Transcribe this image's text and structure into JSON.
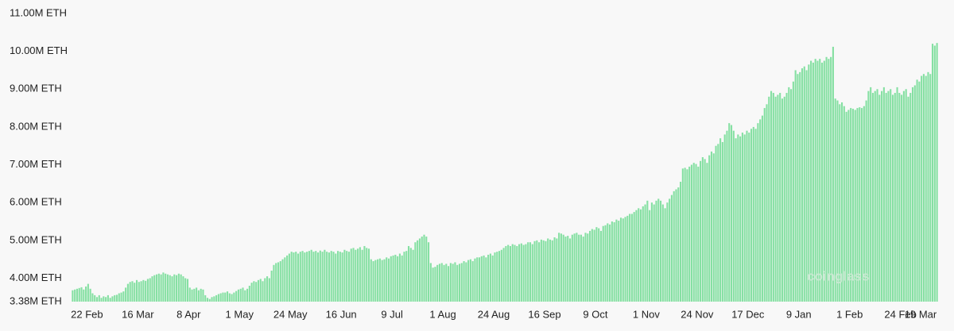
{
  "chart_data": {
    "type": "bar",
    "color": "#86e0a3",
    "watermark": "coinglass",
    "ylim": [
      3.38,
      11.0
    ],
    "yticks": [
      {
        "value": 3.38,
        "label": "3.38M ETH"
      },
      {
        "value": 4,
        "label": "4.00M ETH"
      },
      {
        "value": 5,
        "label": "5.00M ETH"
      },
      {
        "value": 6,
        "label": "6.00M ETH"
      },
      {
        "value": 7,
        "label": "7.00M ETH"
      },
      {
        "value": 8,
        "label": "8.00M ETH"
      },
      {
        "value": 9,
        "label": "9.00M ETH"
      },
      {
        "value": 10,
        "label": "10.00M ETH"
      },
      {
        "value": 11,
        "label": "11.00M ETH"
      }
    ],
    "categories": [
      "22 Feb",
      null,
      null,
      null,
      null,
      null,
      null,
      null,
      null,
      null,
      null,
      null,
      null,
      null,
      null,
      null,
      null,
      null,
      null,
      null,
      null,
      null,
      null,
      "16 Mar",
      null,
      null,
      null,
      null,
      null,
      null,
      null,
      null,
      null,
      null,
      null,
      null,
      null,
      null,
      null,
      null,
      null,
      null,
      null,
      null,
      null,
      null,
      "8 Apr",
      null,
      null,
      null,
      null,
      null,
      null,
      null,
      null,
      null,
      null,
      null,
      null,
      null,
      null,
      null,
      null,
      null,
      null,
      null,
      null,
      null,
      null,
      "1 May",
      null,
      null,
      null,
      null,
      null,
      null,
      null,
      null,
      null,
      null,
      null,
      null,
      null,
      null,
      null,
      null,
      null,
      null,
      null,
      null,
      null,
      null,
      "24 May",
      null,
      null,
      null,
      null,
      null,
      null,
      null,
      null,
      null,
      null,
      null,
      null,
      null,
      null,
      null,
      null,
      null,
      null,
      null,
      null,
      null,
      null,
      "16 Jun",
      null,
      null,
      null,
      null,
      null,
      null,
      null,
      null,
      null,
      null,
      null,
      null,
      null,
      null,
      null,
      null,
      null,
      null,
      null,
      null,
      null,
      null,
      "9 Jul",
      null,
      null,
      null,
      null,
      null,
      null,
      null,
      null,
      null,
      null,
      null,
      null,
      null,
      null,
      null,
      null,
      null,
      null,
      null,
      null,
      null,
      null,
      "1 Aug",
      null,
      null,
      null,
      null,
      null,
      null,
      null,
      null,
      null,
      null,
      null,
      null,
      null,
      null,
      null,
      null,
      null,
      null,
      null,
      null,
      null,
      null,
      "24 Aug",
      null,
      null,
      null,
      null,
      null,
      null,
      null,
      null,
      null,
      null,
      null,
      null,
      null,
      null,
      null,
      null,
      null,
      null,
      null,
      null,
      null,
      null,
      "16 Sep",
      null,
      null,
      null,
      null,
      null,
      null,
      null,
      null,
      null,
      null,
      null,
      null,
      null,
      null,
      null,
      null,
      null,
      null,
      null,
      null,
      null,
      null,
      "9 Oct",
      null,
      null,
      null,
      null,
      null,
      null,
      null,
      null,
      null,
      null,
      null,
      null,
      null,
      null,
      null,
      null,
      null,
      null,
      null,
      null,
      null,
      null,
      "1 Nov",
      null,
      null,
      null,
      null,
      null,
      null,
      null,
      null,
      null,
      null,
      null,
      null,
      null,
      null,
      null,
      null,
      null,
      null,
      null,
      null,
      null,
      null,
      "24 Nov",
      null,
      null,
      null,
      null,
      null,
      null,
      null,
      null,
      null,
      null,
      null,
      null,
      null,
      null,
      null,
      null,
      null,
      null,
      null,
      null,
      null,
      null,
      "17 Dec",
      null,
      null,
      null,
      null,
      null,
      null,
      null,
      null,
      null,
      null,
      null,
      null,
      null,
      null,
      null,
      null,
      null,
      null,
      null,
      null,
      null,
      null,
      "9 Jan",
      null,
      null,
      null,
      null,
      null,
      null,
      null,
      null,
      null,
      null,
      null,
      null,
      null,
      null,
      null,
      null,
      null,
      null,
      null,
      null,
      null,
      null,
      "1 Feb",
      null,
      null,
      null,
      null,
      null,
      null,
      null,
      null,
      null,
      null,
      null,
      null,
      null,
      null,
      null,
      null,
      null,
      null,
      null,
      null,
      null,
      null,
      "24 Feb",
      null,
      null,
      null,
      null,
      null,
      null,
      null,
      null,
      null,
      null,
      null,
      null,
      null,
      null,
      null,
      null,
      null,
      null,
      null,
      null,
      null,
      null,
      "19 Mar"
    ],
    "values": [
      3.68,
      3.7,
      3.72,
      3.74,
      3.76,
      3.7,
      3.78,
      3.85,
      3.72,
      3.6,
      3.55,
      3.5,
      3.55,
      3.48,
      3.52,
      3.5,
      3.55,
      3.48,
      3.52,
      3.55,
      3.56,
      3.6,
      3.62,
      3.65,
      3.75,
      3.85,
      3.9,
      3.92,
      3.88,
      3.95,
      3.9,
      3.92,
      3.95,
      3.93,
      3.98,
      4.0,
      4.05,
      4.08,
      4.1,
      4.12,
      4.1,
      4.15,
      4.12,
      4.1,
      4.08,
      4.05,
      4.1,
      4.08,
      4.12,
      4.1,
      4.05,
      4.0,
      3.98,
      3.75,
      3.7,
      3.72,
      3.75,
      3.68,
      3.72,
      3.7,
      3.55,
      3.48,
      3.45,
      3.5,
      3.52,
      3.55,
      3.58,
      3.6,
      3.62,
      3.62,
      3.65,
      3.6,
      3.58,
      3.62,
      3.66,
      3.7,
      3.72,
      3.75,
      3.68,
      3.72,
      3.8,
      3.88,
      3.92,
      3.9,
      3.95,
      3.98,
      3.92,
      4.0,
      4.05,
      4.0,
      4.2,
      4.35,
      4.4,
      4.42,
      4.45,
      4.5,
      4.55,
      4.6,
      4.65,
      4.7,
      4.68,
      4.7,
      4.65,
      4.7,
      4.72,
      4.68,
      4.7,
      4.72,
      4.75,
      4.7,
      4.72,
      4.68,
      4.73,
      4.7,
      4.75,
      4.7,
      4.68,
      4.72,
      4.7,
      4.65,
      4.72,
      4.7,
      4.68,
      4.75,
      4.72,
      4.7,
      4.78,
      4.8,
      4.75,
      4.78,
      4.82,
      4.75,
      4.85,
      4.8,
      4.78,
      4.5,
      4.45,
      4.48,
      4.5,
      4.52,
      4.48,
      4.5,
      4.55,
      4.52,
      4.58,
      4.6,
      4.62,
      4.58,
      4.65,
      4.6,
      4.7,
      4.72,
      4.85,
      4.8,
      4.75,
      4.95,
      5.0,
      5.05,
      5.1,
      5.15,
      5.1,
      4.95,
      4.4,
      4.28,
      4.3,
      4.35,
      4.38,
      4.4,
      4.35,
      4.38,
      4.32,
      4.4,
      4.38,
      4.42,
      4.35,
      4.38,
      4.4,
      4.45,
      4.42,
      4.48,
      4.5,
      4.45,
      4.52,
      4.55,
      4.55,
      4.58,
      4.6,
      4.55,
      4.62,
      4.65,
      4.6,
      4.68,
      4.7,
      4.72,
      4.75,
      4.8,
      4.85,
      4.88,
      4.85,
      4.9,
      4.88,
      4.85,
      4.9,
      4.92,
      4.88,
      4.9,
      4.95,
      4.95,
      4.9,
      4.98,
      5.0,
      4.95,
      5.02,
      5.0,
      4.98,
      5.05,
      5.02,
      5.0,
      5.08,
      5.05,
      5.2,
      5.18,
      5.15,
      5.1,
      5.12,
      5.05,
      5.15,
      5.18,
      5.2,
      5.15,
      5.15,
      5.1,
      5.2,
      5.18,
      5.25,
      5.3,
      5.28,
      5.35,
      5.32,
      5.25,
      5.38,
      5.4,
      5.45,
      5.42,
      5.5,
      5.48,
      5.55,
      5.52,
      5.6,
      5.58,
      5.62,
      5.65,
      5.7,
      5.7,
      5.75,
      5.8,
      5.85,
      5.82,
      5.9,
      5.95,
      6.05,
      5.8,
      6.0,
      5.95,
      6.05,
      6.1,
      6.05,
      5.95,
      5.85,
      6.0,
      6.1,
      6.2,
      6.3,
      6.35,
      6.4,
      6.55,
      6.9,
      6.92,
      6.88,
      6.95,
      7.0,
      7.05,
      7.02,
      6.95,
      7.1,
      7.2,
      7.15,
      7.05,
      7.25,
      7.35,
      7.3,
      7.5,
      7.55,
      7.7,
      7.6,
      7.8,
      7.9,
      8.1,
      8.05,
      7.9,
      7.7,
      7.8,
      7.75,
      7.85,
      7.8,
      7.9,
      7.85,
      7.95,
      8.0,
      7.95,
      8.1,
      8.2,
      8.3,
      8.5,
      8.6,
      8.8,
      8.95,
      8.9,
      8.8,
      8.85,
      8.9,
      8.75,
      8.8,
      8.9,
      9.05,
      9.0,
      9.2,
      9.5,
      9.4,
      9.45,
      9.55,
      9.6,
      9.5,
      9.65,
      9.75,
      9.7,
      9.8,
      9.75,
      9.8,
      9.7,
      9.75,
      9.85,
      9.8,
      9.85,
      10.12,
      8.75,
      8.7,
      8.6,
      8.65,
      8.55,
      8.4,
      8.45,
      8.5,
      8.48,
      8.45,
      8.5,
      8.52,
      8.5,
      8.55,
      8.7,
      8.95,
      9.05,
      8.9,
      8.95,
      9.0,
      8.85,
      8.95,
      9.05,
      8.9,
      8.95,
      9.0,
      8.85,
      8.9,
      9.05,
      8.9,
      8.85,
      8.95,
      9.0,
      8.8,
      8.9,
      9.05,
      9.1,
      9.25,
      9.2,
      9.35,
      9.4,
      9.35,
      9.45,
      9.4,
      10.2,
      10.15,
      10.22
    ]
  }
}
